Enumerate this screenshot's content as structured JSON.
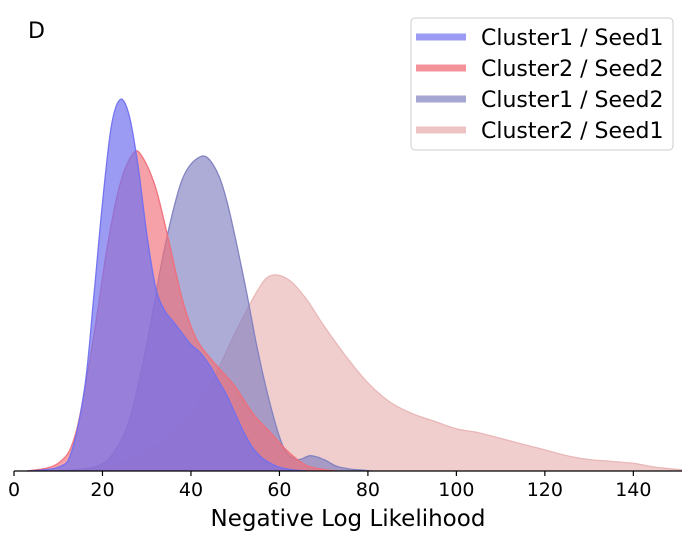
{
  "panel_label": "D",
  "chart_data": {
    "type": "area",
    "title": "",
    "xlabel": "Negative Log Likelihood",
    "ylabel": "",
    "xlim": [
      0,
      151
    ],
    "ylim": [
      0,
      1.0
    ],
    "x_ticks": [
      0,
      20,
      40,
      60,
      80,
      100,
      120,
      140
    ],
    "x_tick_labels": [
      "0",
      "20",
      "40",
      "60",
      "80",
      "100",
      "120",
      "140"
    ],
    "grid": false,
    "legend_position": "top-right",
    "series": [
      {
        "name": "Cluster2 / Seed1",
        "color": "#e8b4b4",
        "opacity": 0.65,
        "x": [
          13,
          20,
          25,
          30,
          35,
          40,
          45,
          50,
          55,
          58,
          62,
          66,
          70,
          75,
          80,
          85,
          90,
          95,
          100,
          105,
          110,
          115,
          120,
          125,
          130,
          135,
          140,
          145,
          151
        ],
        "y": [
          0,
          0.01,
          0.025,
          0.05,
          0.09,
          0.15,
          0.24,
          0.36,
          0.47,
          0.51,
          0.5,
          0.45,
          0.38,
          0.3,
          0.23,
          0.18,
          0.15,
          0.13,
          0.11,
          0.1,
          0.085,
          0.07,
          0.055,
          0.04,
          0.03,
          0.025,
          0.02,
          0.01,
          0.003
        ]
      },
      {
        "name": "Cluster1 / Seed2",
        "color": "#8080c0",
        "opacity": 0.65,
        "x": [
          10,
          18,
          22,
          26,
          30,
          34,
          38,
          42,
          45,
          48,
          52,
          55,
          58,
          61,
          64,
          67,
          70,
          73,
          76,
          79,
          81
        ],
        "y": [
          0,
          0.01,
          0.04,
          0.13,
          0.33,
          0.58,
          0.76,
          0.82,
          0.8,
          0.71,
          0.5,
          0.32,
          0.17,
          0.06,
          0.03,
          0.04,
          0.03,
          0.012,
          0.005,
          0.002,
          0
        ]
      },
      {
        "name": "Cluster2 / Seed2",
        "color": "#f06e78",
        "opacity": 0.65,
        "x": [
          3,
          10,
          14,
          18,
          21,
          24,
          27,
          29,
          32,
          35,
          38,
          41,
          44,
          47,
          50,
          54,
          58,
          62,
          66,
          70,
          73
        ],
        "y": [
          0,
          0.02,
          0.1,
          0.35,
          0.58,
          0.75,
          0.83,
          0.82,
          0.74,
          0.6,
          0.45,
          0.35,
          0.3,
          0.26,
          0.22,
          0.15,
          0.1,
          0.05,
          0.015,
          0.004,
          0
        ]
      },
      {
        "name": "Cluster1 / Seed1",
        "color": "#7070f0",
        "opacity": 0.7,
        "x": [
          3,
          10,
          13,
          16,
          18,
          20,
          22,
          24,
          26,
          28,
          30,
          32,
          34,
          36,
          38,
          40,
          42,
          44,
          46,
          48,
          50,
          52,
          54,
          56,
          58,
          60,
          63,
          66
        ],
        "y": [
          0,
          0.01,
          0.05,
          0.22,
          0.45,
          0.7,
          0.9,
          0.97,
          0.93,
          0.8,
          0.62,
          0.48,
          0.42,
          0.39,
          0.36,
          0.33,
          0.31,
          0.28,
          0.24,
          0.2,
          0.15,
          0.1,
          0.06,
          0.035,
          0.02,
          0.01,
          0.003,
          0
        ]
      }
    ]
  },
  "legend": [
    {
      "label": "Cluster1 / Seed1",
      "color": "#7070f0",
      "opacity": 0.7
    },
    {
      "label": "Cluster2 / Seed2",
      "color": "#f06e78",
      "opacity": 0.75
    },
    {
      "label": "Cluster1 / Seed2",
      "color": "#8080c0",
      "opacity": 0.7
    },
    {
      "label": "Cluster2 / Seed1",
      "color": "#e8b4b4",
      "opacity": 0.8
    }
  ]
}
